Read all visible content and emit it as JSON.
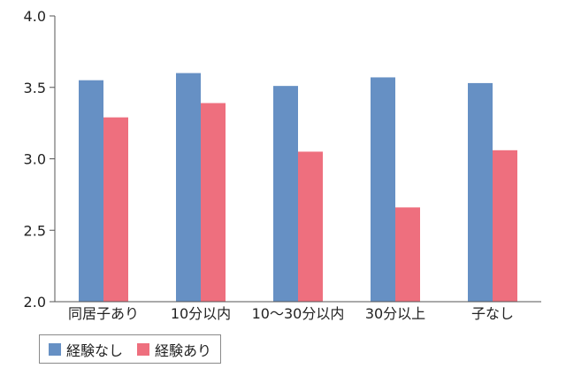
{
  "chart_data": {
    "type": "bar",
    "title": "",
    "xlabel": "",
    "ylabel": "",
    "categories": [
      "同居子あり",
      "10分以内",
      "10～30分以内",
      "30分以上",
      "子なし"
    ],
    "series": [
      {
        "name": "経験なし",
        "values": [
          3.55,
          3.6,
          3.51,
          3.57,
          3.53
        ],
        "color": "#6690c4"
      },
      {
        "name": "経験あり",
        "values": [
          3.29,
          3.39,
          3.05,
          2.66,
          3.06
        ],
        "color": "#ee6f7e"
      }
    ],
    "ylim": [
      2.0,
      4.0
    ],
    "yticks": [
      "2.0",
      "2.5",
      "3.0",
      "3.5",
      "4.0"
    ],
    "grid": false,
    "legend_position": "bottom-left"
  }
}
